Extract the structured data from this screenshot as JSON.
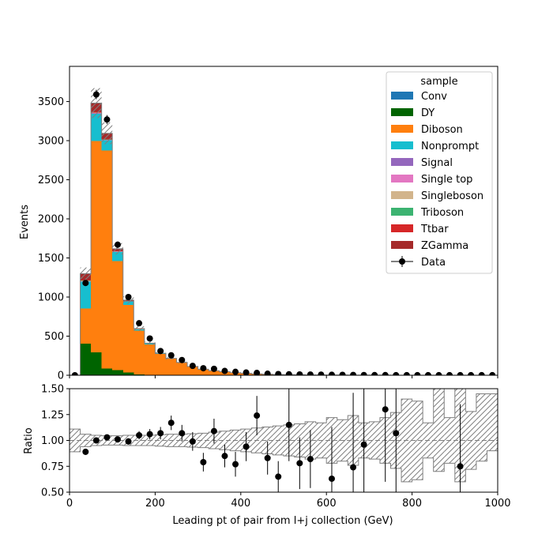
{
  "chart_data": [
    {
      "type": "bar",
      "stacked": true,
      "xlabel": "",
      "ylabel": "Events",
      "xlim": [
        0,
        1000
      ],
      "ylim": [
        0,
        3950
      ],
      "yticks": [
        0,
        500,
        1000,
        1500,
        2000,
        2500,
        3000,
        3500
      ],
      "bin_edges": [
        0,
        25,
        50,
        75,
        100,
        125,
        150,
        175,
        200,
        225,
        250,
        275,
        300,
        325,
        350,
        375,
        400,
        425,
        450,
        475,
        500,
        525,
        550,
        575,
        600,
        625,
        650,
        675,
        700,
        725,
        750,
        775,
        800,
        825,
        850,
        875,
        900,
        925,
        950,
        975,
        1000
      ],
      "series": [
        {
          "name": "Conv",
          "color": "#1f77b4",
          "values": [
            0,
            5,
            5,
            4,
            3,
            2,
            1,
            1,
            0,
            0,
            0,
            0,
            0,
            0,
            0,
            0,
            0,
            0,
            0,
            0,
            0,
            0,
            0,
            0,
            0,
            0,
            0,
            0,
            0,
            0,
            0,
            0,
            0,
            0,
            0,
            0,
            0,
            0,
            0,
            0
          ]
        },
        {
          "name": "DY",
          "color": "#006400",
          "values": [
            0,
            400,
            290,
            80,
            65,
            35,
            10,
            5,
            3,
            2,
            1,
            1,
            1,
            0,
            0,
            0,
            0,
            0,
            0,
            0,
            0,
            0,
            0,
            0,
            0,
            0,
            0,
            0,
            0,
            0,
            0,
            0,
            0,
            0,
            0,
            0,
            0,
            0,
            0,
            0
          ]
        },
        {
          "name": "Diboson",
          "color": "#ff7f0e",
          "values": [
            0,
            450,
            2700,
            2790,
            1390,
            860,
            560,
            390,
            270,
            210,
            160,
            110,
            75,
            58,
            45,
            33,
            25,
            18,
            12,
            9,
            7,
            6,
            4,
            3,
            2,
            2,
            1.5,
            1,
            1,
            1,
            0.5,
            0.5,
            0.5,
            0.5,
            0,
            0,
            0,
            0,
            0,
            0
          ]
        },
        {
          "name": "Nonprompt",
          "color": "#17becf",
          "values": [
            0,
            340,
            350,
            130,
            120,
            45,
            15,
            8,
            5,
            3,
            2,
            1,
            1,
            0,
            0,
            0,
            0,
            0,
            0,
            0,
            0,
            0,
            0,
            0,
            0,
            0,
            0,
            0,
            0,
            0,
            0,
            0,
            0,
            0,
            0,
            0,
            0,
            0,
            0,
            0
          ]
        },
        {
          "name": "Signal",
          "color": "#9467bd",
          "values": [
            0,
            3,
            3,
            2,
            2,
            1,
            1,
            1,
            0,
            0,
            0,
            0,
            0,
            0,
            0,
            0,
            0,
            0,
            0,
            0,
            0,
            0,
            0,
            0,
            0,
            0,
            0,
            0,
            0,
            0,
            0,
            0,
            0,
            0,
            0,
            0,
            0,
            0,
            0,
            0
          ]
        },
        {
          "name": "Single top",
          "color": "#e377c2",
          "values": [
            0,
            4,
            4,
            3,
            2,
            1,
            1,
            0,
            0,
            0,
            0,
            0,
            0,
            0,
            0,
            0,
            0,
            0,
            0,
            0,
            0,
            0,
            0,
            0,
            0,
            0,
            0,
            0,
            0,
            0,
            0,
            0,
            0,
            0,
            0,
            0,
            0,
            0,
            0,
            0
          ]
        },
        {
          "name": "Singleboson",
          "color": "#d2b48c",
          "values": [
            0,
            5,
            5,
            4,
            3,
            2,
            1,
            1,
            0,
            0,
            0,
            0,
            0,
            0,
            0,
            0,
            0,
            0,
            0,
            0,
            0,
            0,
            0,
            0,
            0,
            0,
            0,
            0,
            0,
            0,
            0,
            0,
            0,
            0,
            0,
            0,
            0,
            0,
            0,
            0
          ]
        },
        {
          "name": "Triboson",
          "color": "#3cb371",
          "values": [
            0,
            3,
            3,
            3,
            2,
            2,
            1,
            1,
            1,
            0,
            0,
            0,
            0,
            0,
            0,
            0,
            0,
            0,
            0,
            0,
            0,
            0,
            0,
            0,
            0,
            0,
            0,
            0,
            0,
            0,
            0,
            0,
            0,
            0,
            0,
            0,
            0,
            0,
            0,
            0
          ]
        },
        {
          "name": "Ttbar",
          "color": "#d62728",
          "values": [
            0,
            5,
            10,
            8,
            5,
            3,
            2,
            1,
            1,
            0,
            0,
            0,
            0,
            0,
            0,
            0,
            0,
            0,
            0,
            0,
            0,
            0,
            0,
            0,
            0,
            0,
            0,
            0,
            0,
            0,
            0,
            0,
            0,
            0,
            0,
            0,
            0,
            0,
            0,
            0
          ]
        },
        {
          "name": "ZGamma",
          "color": "#a52a2a",
          "values": [
            0,
            85,
            110,
            70,
            25,
            10,
            5,
            3,
            2,
            1,
            1,
            0,
            0,
            0,
            0,
            0,
            0,
            0,
            0,
            0,
            0,
            0,
            0,
            0,
            0,
            0,
            0,
            0,
            0,
            0,
            0,
            0,
            0,
            0,
            0,
            0,
            0,
            0,
            0,
            0
          ]
        }
      ],
      "uncertainty_rel": [
        0,
        0.06,
        0.055,
        0.045,
        0.045,
        0.05,
        0.05,
        0.05,
        0.055,
        0.06,
        0.06,
        0.065,
        0.07,
        0.08,
        0.09,
        0.1,
        0.11,
        0.12,
        0.13,
        0.14,
        0.15,
        0.16,
        0.18,
        0.2,
        0.22,
        0.25,
        0.27,
        0.3,
        0.32,
        0.35,
        0.38,
        0.4,
        0.42,
        0.45,
        0.47,
        0.5,
        0.5,
        0.5,
        0.5,
        0.5
      ],
      "data": {
        "name": "Data",
        "x": [
          12.5,
          37.5,
          62.5,
          87.5,
          112.5,
          137.5,
          162.5,
          187.5,
          212.5,
          237.5,
          262.5,
          287.5,
          312.5,
          337.5,
          362.5,
          387.5,
          412.5,
          437.5,
          462.5,
          487.5,
          512.5,
          537.5,
          562.5,
          587.5,
          612.5,
          637.5,
          662.5,
          687.5,
          712.5,
          737.5,
          762.5,
          787.5,
          812.5,
          837.5,
          862.5,
          887.5,
          912.5,
          937.5,
          962.5,
          987.5
        ],
        "y": [
          0,
          1180,
          3590,
          3270,
          1670,
          1000,
          665,
          470,
          310,
          255,
          195,
          120,
          90,
          82,
          55,
          44,
          35,
          30,
          20,
          15,
          12,
          10,
          9,
          8,
          6,
          5,
          4,
          3,
          2,
          2,
          1,
          1,
          1,
          1,
          1,
          1,
          1,
          1,
          1,
          1
        ]
      },
      "legend": {
        "title": "sample",
        "placement": "top-right"
      }
    },
    {
      "type": "scatter",
      "xlabel": "Leading pt of pair from l+j collection (GeV)",
      "ylabel": "Ratio",
      "xlim": [
        0,
        1000
      ],
      "ylim": [
        0.5,
        1.5
      ],
      "xticks": [
        0,
        200,
        400,
        600,
        800,
        1000
      ],
      "yticks": [
        0.5,
        0.75,
        1.0,
        1.25,
        1.5
      ],
      "reference_line": 1.0,
      "ratio": {
        "x": [
          37.5,
          62.5,
          87.5,
          112.5,
          137.5,
          162.5,
          187.5,
          212.5,
          237.5,
          262.5,
          287.5,
          312.5,
          337.5,
          362.5,
          387.5,
          412.5,
          437.5,
          462.5,
          487.5,
          512.5,
          537.5,
          562.5,
          612.5,
          662.5,
          687.5,
          737.5,
          762.5,
          912.5
        ],
        "y": [
          0.89,
          1.0,
          1.03,
          1.01,
          0.99,
          1.05,
          1.06,
          1.07,
          1.17,
          1.07,
          0.99,
          0.79,
          1.09,
          0.85,
          0.77,
          0.94,
          1.24,
          0.83,
          0.65,
          1.15,
          0.78,
          0.82,
          0.63,
          0.74,
          0.96,
          1.3,
          1.07,
          0.75
        ],
        "err": [
          0.03,
          0.02,
          0.02,
          0.03,
          0.03,
          0.04,
          0.05,
          0.06,
          0.07,
          0.08,
          0.09,
          0.09,
          0.12,
          0.11,
          0.12,
          0.14,
          0.19,
          0.16,
          0.15,
          0.35,
          0.25,
          0.28,
          0.5,
          0.72,
          0.75,
          0.7,
          0.75,
          0.6
        ]
      },
      "band": {
        "edges": [
          0,
          25,
          50,
          75,
          100,
          125,
          150,
          175,
          200,
          225,
          250,
          275,
          300,
          325,
          350,
          375,
          400,
          425,
          450,
          475,
          500,
          525,
          550,
          575,
          600,
          625,
          650,
          675,
          700,
          725,
          750,
          775,
          800,
          825,
          850,
          875,
          900,
          925,
          950,
          975,
          1000
        ],
        "lo": [
          0.89,
          0.94,
          0.95,
          0.955,
          0.955,
          0.95,
          0.95,
          0.95,
          0.945,
          0.94,
          0.94,
          0.935,
          0.93,
          0.92,
          0.91,
          0.9,
          0.89,
          0.88,
          0.87,
          0.86,
          0.85,
          0.84,
          0.82,
          0.83,
          0.78,
          0.8,
          0.76,
          0.83,
          0.82,
          0.78,
          0.73,
          0.6,
          0.62,
          0.83,
          0.7,
          0.78,
          0.6,
          0.72,
          0.8,
          0.9
        ],
        "hi": [
          1.11,
          1.06,
          1.05,
          1.045,
          1.045,
          1.05,
          1.05,
          1.05,
          1.055,
          1.06,
          1.06,
          1.065,
          1.07,
          1.08,
          1.09,
          1.1,
          1.11,
          1.12,
          1.13,
          1.14,
          1.15,
          1.16,
          1.18,
          1.17,
          1.22,
          1.2,
          1.24,
          1.17,
          1.18,
          1.22,
          1.27,
          1.4,
          1.38,
          1.17,
          1.5,
          1.22,
          1.5,
          1.28,
          1.45,
          1.45
        ]
      }
    }
  ]
}
